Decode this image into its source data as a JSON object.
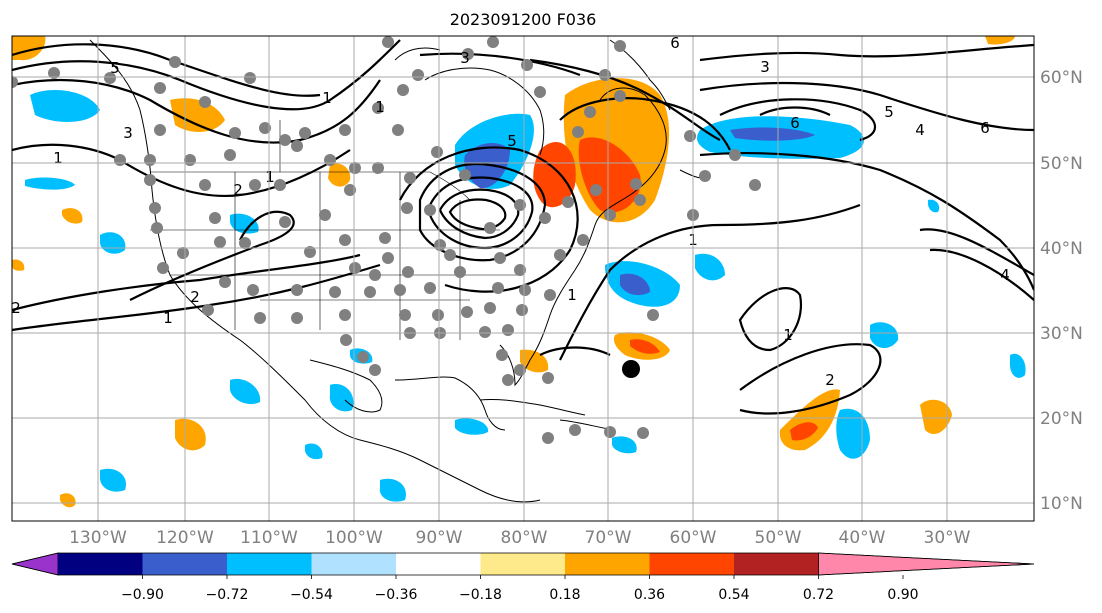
{
  "title": "2023091200 F036",
  "lat_labels": [
    "60°N",
    "50°N",
    "40°N",
    "30°N",
    "20°N",
    "10°N"
  ],
  "lon_labels": [
    "130°W",
    "120°W",
    "110°W",
    "100°W",
    "90°W",
    "80°W",
    "70°W",
    "60°W",
    "50°W",
    "40°W",
    "30°W"
  ],
  "contour_labels": [
    "5",
    "3",
    "6",
    "3",
    "5",
    "4",
    "6",
    "1",
    "3",
    "2",
    "1",
    "1",
    "2",
    "1",
    "2",
    "1",
    "1",
    "1",
    "1",
    "2",
    "4",
    "6",
    "5"
  ],
  "colorbar": {
    "ticks": [
      "−0.90",
      "−0.72",
      "−0.54",
      "−0.36",
      "−0.18",
      "0.18",
      "0.36",
      "0.54",
      "0.72",
      "0.90"
    ],
    "colors": [
      "#9933cc",
      "#000080",
      "#3a5fcd",
      "#00bfff",
      "#b0e2ff",
      "#ffffff",
      "#fee98b",
      "#ffa500",
      "#ff4500",
      "#b22222",
      "#ff88aa"
    ]
  },
  "colors": {
    "grid": "#aaaaaa",
    "frame": "#000000",
    "marker_dot": "#808080",
    "storm_marker": "#000000"
  }
}
